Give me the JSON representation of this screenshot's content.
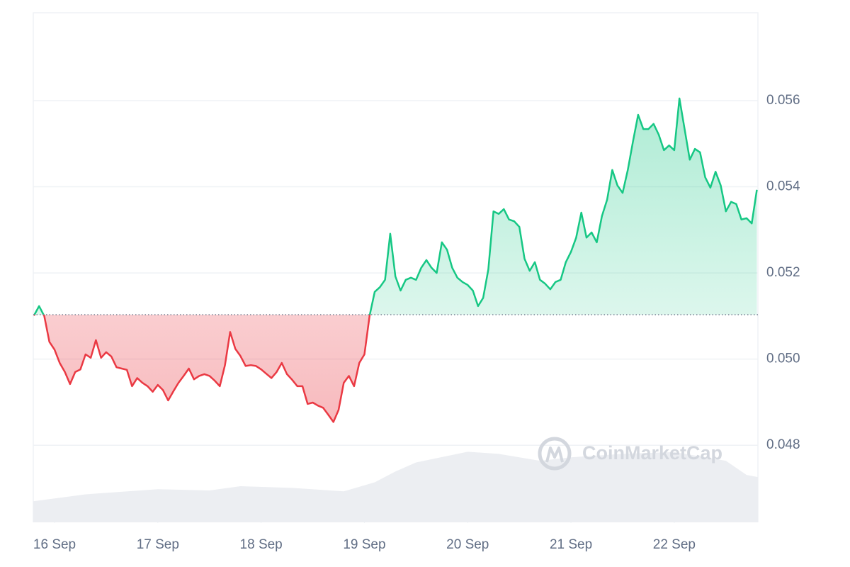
{
  "chart_data": {
    "type": "line",
    "x": [
      -0.2,
      -0.15,
      -0.1,
      -0.05,
      0,
      0.05,
      0.1,
      0.15,
      0.2,
      0.25,
      0.3,
      0.35,
      0.4,
      0.45,
      0.5,
      0.55,
      0.6,
      0.65,
      0.7,
      0.75,
      0.8,
      0.85,
      0.9,
      0.95,
      1,
      1.05,
      1.1,
      1.15,
      1.2,
      1.25,
      1.3,
      1.35,
      1.4,
      1.45,
      1.5,
      1.55,
      1.6,
      1.65,
      1.7,
      1.75,
      1.8,
      1.85,
      1.9,
      1.95,
      2,
      2.05,
      2.1,
      2.15,
      2.2,
      2.25,
      2.3,
      2.35,
      2.4,
      2.45,
      2.5,
      2.55,
      2.6,
      2.65,
      2.7,
      2.75,
      2.8,
      2.85,
      2.9,
      2.95,
      3,
      3.05,
      3.1,
      3.15,
      3.2,
      3.25,
      3.3,
      3.35,
      3.4,
      3.45,
      3.5,
      3.55,
      3.6,
      3.65,
      3.7,
      3.75,
      3.8,
      3.85,
      3.9,
      3.95,
      4,
      4.05,
      4.1,
      4.15,
      4.2,
      4.25,
      4.3,
      4.35,
      4.4,
      4.45,
      4.5,
      4.55,
      4.6,
      4.65,
      4.7,
      4.75,
      4.8,
      4.85,
      4.9,
      4.95,
      5,
      5.05,
      5.1,
      5.15,
      5.2,
      5.25,
      5.3,
      5.35,
      5.4,
      5.45,
      5.5,
      5.55,
      5.6,
      5.65,
      5.7,
      5.75,
      5.8,
      5.85,
      5.9,
      5.95,
      6,
      6.05,
      6.1,
      6.15,
      6.2,
      6.25,
      6.3,
      6.35,
      6.4,
      6.45,
      6.5,
      6.55,
      6.6,
      6.65,
      6.7,
      6.75,
      6.8
    ],
    "values": [
      0.05101,
      0.05123,
      0.051,
      0.0504,
      0.05022,
      0.04991,
      0.0497,
      0.04942,
      0.0497,
      0.04976,
      0.05011,
      0.05003,
      0.05044,
      0.05003,
      0.05016,
      0.05006,
      0.04981,
      0.04978,
      0.04975,
      0.04937,
      0.04956,
      0.04945,
      0.04937,
      0.04924,
      0.0494,
      0.04928,
      0.04904,
      0.04925,
      0.04945,
      0.04961,
      0.04978,
      0.04953,
      0.04961,
      0.04965,
      0.04961,
      0.0495,
      0.04937,
      0.04986,
      0.05063,
      0.05024,
      0.05007,
      0.04984,
      0.04986,
      0.04984,
      0.04976,
      0.04966,
      0.04956,
      0.0497,
      0.04991,
      0.04965,
      0.04952,
      0.04937,
      0.04937,
      0.04896,
      0.04899,
      0.04892,
      0.04887,
      0.04871,
      0.04854,
      0.04882,
      0.04945,
      0.04961,
      0.04937,
      0.04991,
      0.05011,
      0.05101,
      0.05156,
      0.05167,
      0.05184,
      0.05291,
      0.05192,
      0.05159,
      0.05184,
      0.05189,
      0.05184,
      0.05212,
      0.0523,
      0.05212,
      0.052,
      0.05271,
      0.05254,
      0.05212,
      0.05189,
      0.05179,
      0.05172,
      0.05159,
      0.05123,
      0.05142,
      0.05208,
      0.05343,
      0.05337,
      0.05348,
      0.05324,
      0.0532,
      0.05307,
      0.05233,
      0.05205,
      0.05225,
      0.05184,
      0.05175,
      0.05162,
      0.05179,
      0.05184,
      0.05225,
      0.05249,
      0.05282,
      0.0534,
      0.05282,
      0.05294,
      0.05271,
      0.05332,
      0.0537,
      0.05439,
      0.05403,
      0.05386,
      0.05439,
      0.05505,
      0.05567,
      0.05534,
      0.05534,
      0.05546,
      0.05521,
      0.05485,
      0.05496,
      0.05485,
      0.05605,
      0.05534,
      0.05463,
      0.05488,
      0.0548,
      0.05422,
      0.05398,
      0.05435,
      0.05403,
      0.05343,
      0.05365,
      0.0536,
      0.05324,
      0.05327,
      0.05315,
      0.05393
    ],
    "reference_line": 0.05103,
    "up_color": "#16c784",
    "down_color": "#ea3943",
    "volume": {
      "color": "#eceef2",
      "x": [
        -0.206,
        0.3,
        1,
        1.5,
        1.8,
        2.3,
        2.8,
        3.1,
        3.3,
        3.5,
        4,
        4.3,
        4.7,
        5,
        5.5,
        6,
        6.5,
        6.7,
        6.81
      ],
      "values": [
        0.0467,
        0.04686,
        0.04698,
        0.04695,
        0.04705,
        0.04701,
        0.04693,
        0.04714,
        0.04739,
        0.0476,
        0.04785,
        0.0478,
        0.04764,
        0.04772,
        0.0478,
        0.04784,
        0.04764,
        0.04731,
        0.04726
      ]
    },
    "xlim": [
      -0.206,
      6.81
    ],
    "ylim": [
      0.04621,
      0.05804
    ],
    "xticks": [
      {
        "value": 0,
        "label": "16 Sep"
      },
      {
        "value": 1,
        "label": "17 Sep"
      },
      {
        "value": 2,
        "label": "18 Sep"
      },
      {
        "value": 3,
        "label": "19 Sep"
      },
      {
        "value": 4,
        "label": "20 Sep"
      },
      {
        "value": 5,
        "label": "21 Sep"
      },
      {
        "value": 6,
        "label": "22 Sep"
      }
    ],
    "yticks": [
      0.048,
      {
        "value": 0.05,
        "label": "0.050"
      },
      0.052,
      0.054,
      0.056
    ],
    "grid": true,
    "watermark": "CoinMarketCap"
  }
}
